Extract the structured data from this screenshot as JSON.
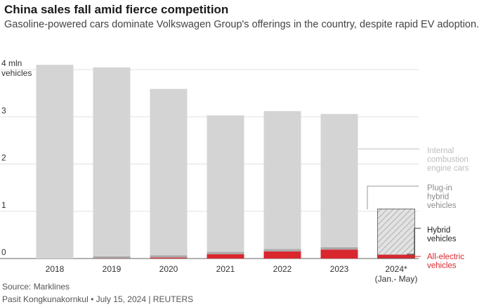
{
  "title": "China sales fall amid fierce competition",
  "subtitle": "Gasoline-powered cars dominate Volkswagen Group's offerings in the country, despite rapid EV adoption.",
  "source": "Source: Marklines",
  "credit": "Pasit Kongkunakornkul • July 15, 2024 | REUTERS",
  "colors": {
    "ice": "#d4d4d4",
    "phev": "#a9a9a9",
    "hybrid": "#4a4a4a",
    "ev": "#d9272e",
    "hatch": "#9a9a9a"
  },
  "chart_data": {
    "type": "bar",
    "stacked": true,
    "categories": [
      "2018",
      "2019",
      "2020",
      "2021",
      "2022",
      "2023",
      "2024*"
    ],
    "category_sublabels": [
      "",
      "",
      "",
      "",
      "",
      "",
      "(Jan.- May)"
    ],
    "ylim": [
      0,
      4
    ],
    "yticks": [
      0,
      1,
      2,
      3,
      4
    ],
    "ytick_labels": [
      "0",
      "1",
      "2",
      "3",
      "4 mln"
    ],
    "ylabel_unit": "vehicles",
    "grid": true,
    "series": [
      {
        "name": "All-electric vehicles",
        "key": "ev",
        "values": [
          0.0,
          0.005,
          0.02,
          0.09,
          0.15,
          0.19,
          0.08
        ]
      },
      {
        "name": "Hybrid vehicles",
        "key": "hybrid",
        "values": [
          0.0,
          0.0,
          0.0,
          0.0,
          0.0,
          0.0,
          0.0
        ]
      },
      {
        "name": "Plug-in hybrid vehicles",
        "key": "phev",
        "values": [
          0.0,
          0.04,
          0.05,
          0.05,
          0.05,
          0.05,
          0.01
        ]
      },
      {
        "name": "Internal combustion engine cars",
        "key": "ice",
        "values": [
          4.1,
          4.0,
          3.52,
          2.89,
          2.92,
          2.82,
          0.96
        ]
      }
    ],
    "hatched_categories": [
      "2024*"
    ],
    "legend": [
      {
        "key": "ice",
        "lines": [
          "Internal",
          "combustion",
          "engine cars"
        ],
        "color": "#bdbdbd"
      },
      {
        "key": "phev",
        "lines": [
          "Plug-in",
          "hybrid",
          "vehicles"
        ],
        "color": "#8c8c8c"
      },
      {
        "key": "hybrid",
        "lines": [
          "Hybrid",
          "vehicles"
        ],
        "color": "#222222"
      },
      {
        "key": "ev",
        "lines": [
          "All-electric",
          "vehicles"
        ],
        "color": "#d9272e"
      }
    ]
  }
}
